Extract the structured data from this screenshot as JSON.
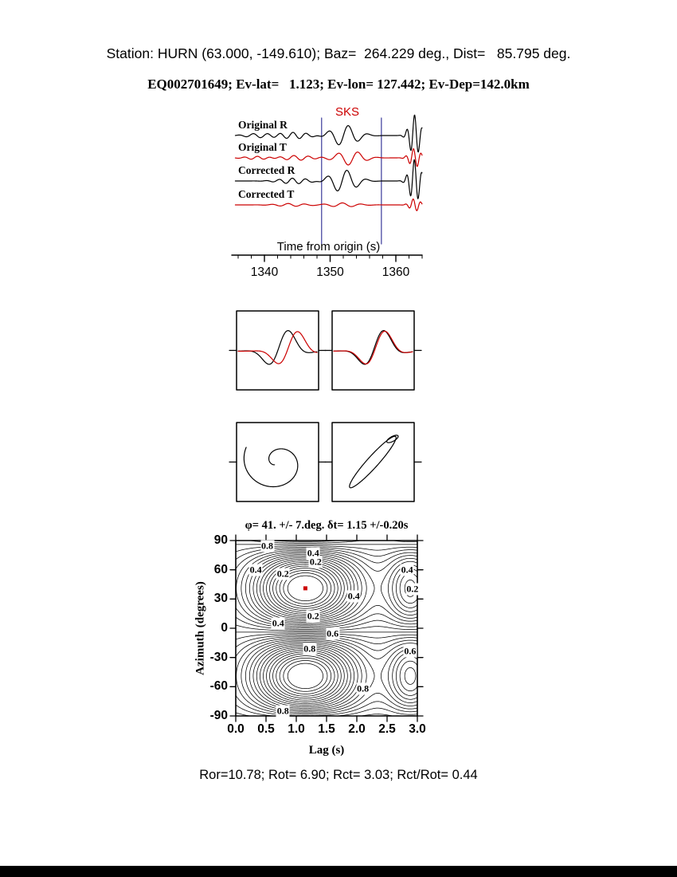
{
  "header": {
    "station_line": "Station: HURN (63.000, -149.610); Baz=  264.229 deg., Dist=   85.795 deg.",
    "event_line": "EQ002701649; Ev-lat=   1.123; Ev-lon= 127.442; Ev-Dep=142.0km"
  },
  "footer": {
    "ratios": "Ror=10.78; Rot= 6.90; Rct= 3.03; Rct/Rot= 0.44"
  },
  "colors": {
    "trace_r": "#000000",
    "trace_t": "#cc0000",
    "window_line": "#3a3a9a",
    "marker": "#cc0000"
  },
  "chart_data": {
    "type": "composite",
    "seismogram": {
      "xlabel": "Time from origin (s)",
      "phase_label": "SKS",
      "xticks": [
        1340,
        1350,
        1360
      ],
      "xrange": [
        1335.5,
        1364.0
      ],
      "window": [
        1348.7,
        1357.8
      ],
      "traces": [
        {
          "label": "Original R",
          "color": "black",
          "components": [
            {
              "a": 13,
              "c": 1352.2,
              "w": 2.6,
              "f": 0.33,
              "p": -1.2
            },
            {
              "a": 4,
              "c": 1344.5,
              "w": 3.0,
              "f": 0.5,
              "p": 0.5
            },
            {
              "a": 2.5,
              "c": 1339.0,
              "w": 2.5,
              "f": 0.45,
              "p": 2.0
            },
            {
              "a": 26,
              "c": 1362.9,
              "w": 1.1,
              "f": 0.85,
              "p": 0.3
            }
          ]
        },
        {
          "label": "Original T",
          "color": "red",
          "components": [
            {
              "a": 9,
              "c": 1353.0,
              "w": 2.6,
              "f": 0.33,
              "p": -2.6
            },
            {
              "a": 3,
              "c": 1345.0,
              "w": 3.0,
              "f": 0.45,
              "p": 1.5
            },
            {
              "a": 2,
              "c": 1339.0,
              "w": 2.5,
              "f": 0.5,
              "p": 0.2
            },
            {
              "a": 12,
              "c": 1362.9,
              "w": 1.1,
              "f": 0.85,
              "p": 1.2
            }
          ]
        },
        {
          "label": "Corrected R",
          "color": "black",
          "components": [
            {
              "a": 14,
              "c": 1352.0,
              "w": 2.6,
              "f": 0.33,
              "p": -1.2
            },
            {
              "a": 3.5,
              "c": 1344.5,
              "w": 3.0,
              "f": 0.5,
              "p": 0.8
            },
            {
              "a": 27,
              "c": 1362.9,
              "w": 1.1,
              "f": 0.85,
              "p": 0.5
            }
          ]
        },
        {
          "label": "Corrected T",
          "color": "red",
          "components": [
            {
              "a": 2.5,
              "c": 1352.0,
              "w": 3.0,
              "f": 0.35,
              "p": 0.3
            },
            {
              "a": 1.8,
              "c": 1344.0,
              "w": 3.0,
              "f": 0.4,
              "p": 1.0
            },
            {
              "a": 8,
              "c": 1362.9,
              "w": 1.0,
              "f": 0.85,
              "p": 1.5
            }
          ]
        }
      ]
    },
    "comparison_boxes": {
      "wave": {
        "center": 0.55,
        "width": 0.23,
        "freq": 1.5
      },
      "left": {
        "shift": 0.12,
        "scale": 0.95
      },
      "right": {
        "shift": 0.015,
        "scale": 0.97
      }
    },
    "particle_motion": {
      "left": {
        "type": "spiral",
        "turns": 1.21
      },
      "right": {
        "type": "ellipse",
        "angle_deg": 48
      }
    },
    "contour": {
      "title": "φ= 41. +/- 7.deg. δt= 1.15 +/-0.20s",
      "xlabel": "Lag (s)",
      "ylabel": "Azimuth (degrees)",
      "xticks": [
        "0.0",
        "0.5",
        "1.0",
        "1.5",
        "2.0",
        "2.5",
        "3.0"
      ],
      "yticks": [
        "90",
        "60",
        "30",
        "0",
        "-30",
        "-60",
        "-90"
      ],
      "xlim": [
        0,
        3
      ],
      "ylim": [
        -90,
        90
      ],
      "best": {
        "phi": 41,
        "phi_err": 7,
        "dt": 1.15,
        "dt_err": 0.2
      },
      "levels": {
        "min": 0.05,
        "max": 0.95,
        "step": 0.025
      },
      "field": {
        "t0": 1.15,
        "w1": 0.9,
        "a0": 41,
        "g2_amp": 0.5,
        "t2": 2.9,
        "w2": 0.4
      },
      "labels": [
        {
          "text": "0.8",
          "lag": 0.52,
          "az": 84
        },
        {
          "text": "0.4",
          "lag": 1.28,
          "az": 77
        },
        {
          "text": "0.2",
          "lag": 1.32,
          "az": 68
        },
        {
          "text": "0.4",
          "lag": 0.33,
          "az": 60
        },
        {
          "text": "0.2",
          "lag": 0.78,
          "az": 56
        },
        {
          "text": "0.4",
          "lag": 2.83,
          "az": 60
        },
        {
          "text": "0.2",
          "lag": 2.92,
          "az": 40
        },
        {
          "text": "0.4",
          "lag": 1.95,
          "az": 33
        },
        {
          "text": "0.2",
          "lag": 1.28,
          "az": 12
        },
        {
          "text": "0.4",
          "lag": 0.7,
          "az": 5
        },
        {
          "text": "0.6",
          "lag": 1.6,
          "az": -6
        },
        {
          "text": "0.8",
          "lag": 1.22,
          "az": -21
        },
        {
          "text": "0.6",
          "lag": 2.88,
          "az": -24
        },
        {
          "text": "0.8",
          "lag": 2.1,
          "az": -62
        },
        {
          "text": "0.8",
          "lag": 0.78,
          "az": -85
        }
      ]
    }
  }
}
